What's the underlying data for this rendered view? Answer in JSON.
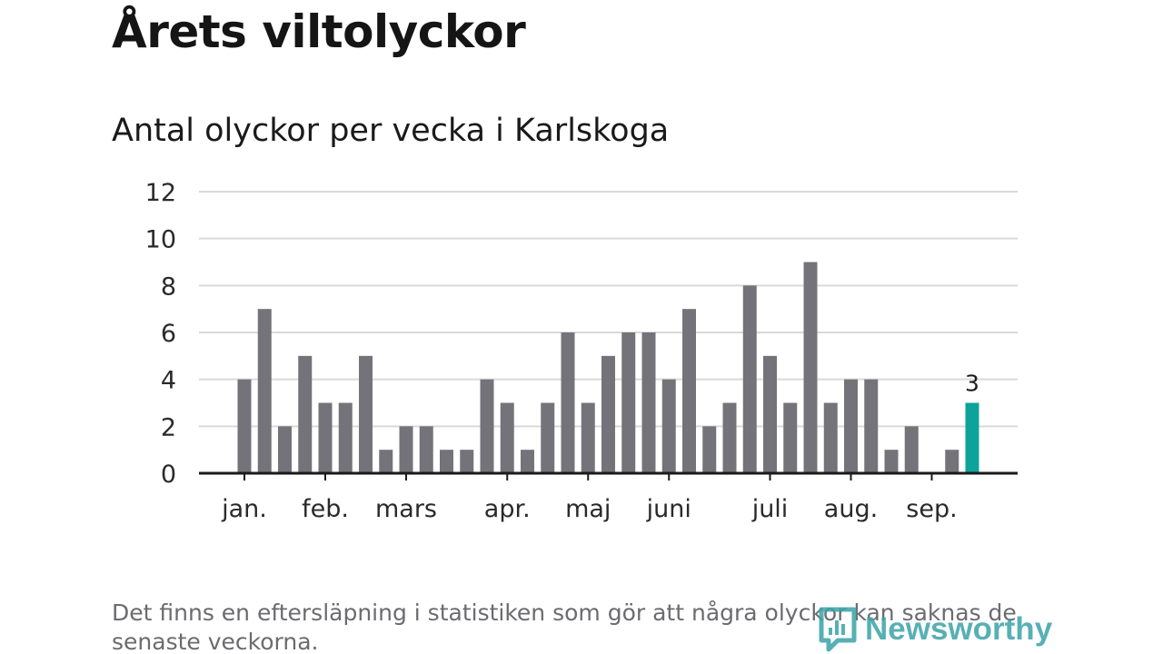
{
  "header": {
    "title": "Årets viltolyckor",
    "subtitle": "Antal olyckor per vecka i Karlskoga"
  },
  "footnote": "Det finns en eftersläpning i statistiken som gör att några olyckor kan saknas de senaste veckorna.",
  "logo": {
    "text": "Newsworthy"
  },
  "colors": {
    "bar": "#74737a",
    "highlight": "#0da39a",
    "grid": "#d9d9d9",
    "axis": "#1a1a1a",
    "logo": "#3aa3a8"
  },
  "chart_data": {
    "type": "bar",
    "title": "Antal olyckor per vecka i Karlskoga",
    "xlabel": "",
    "ylabel": "",
    "ylim": [
      0,
      12
    ],
    "yticks": [
      0,
      2,
      4,
      6,
      8,
      10,
      12
    ],
    "grid": true,
    "months": [
      "jan.",
      "feb.",
      "mars",
      "apr.",
      "maj",
      "juni",
      "juli",
      "aug.",
      "sep."
    ],
    "month_tick_weeks": [
      1,
      5,
      9,
      14,
      18,
      22,
      27,
      31,
      35
    ],
    "weeks": [
      1,
      2,
      3,
      4,
      5,
      6,
      7,
      8,
      9,
      10,
      11,
      12,
      13,
      14,
      15,
      16,
      17,
      18,
      19,
      20,
      21,
      22,
      23,
      24,
      25,
      26,
      27,
      28,
      29,
      30,
      31,
      32,
      33,
      34,
      35,
      36,
      37
    ],
    "values": [
      4,
      7,
      2,
      5,
      3,
      3,
      5,
      1,
      2,
      2,
      1,
      1,
      4,
      3,
      1,
      3,
      6,
      3,
      5,
      6,
      6,
      4,
      7,
      2,
      3,
      8,
      5,
      3,
      9,
      3,
      4,
      4,
      1,
      2,
      0,
      1,
      3
    ],
    "highlight_week": 37,
    "highlight_label": "3"
  }
}
